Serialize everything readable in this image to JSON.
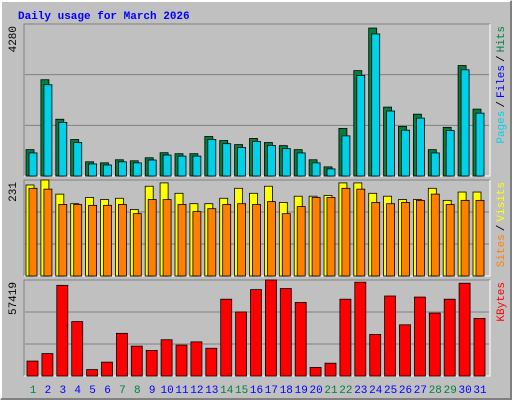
{
  "title": "Daily usage for March 2026",
  "chart_data": [
    {
      "type": "bar",
      "ylim": [
        0,
        4280
      ],
      "yticks": [
        4280
      ],
      "grid": true,
      "legend_separator": "/",
      "series": [
        {
          "name": "Hits",
          "color": "#008040",
          "values": [
            742,
            2711,
            1598,
            1027,
            400,
            371,
            457,
            428,
            514,
            656,
            628,
            628,
            1113,
            999,
            885,
            1056,
            942,
            856,
            742,
            457,
            257,
            1341,
            2967,
            4166,
            1940,
            1398,
            1741,
            742,
            1370,
            3110,
            1883
          ]
        },
        {
          "name": "Files",
          "color": "#0000FF",
          "values": [
            280,
            600,
            450,
            350,
            160,
            150,
            170,
            160,
            190,
            230,
            220,
            220,
            300,
            280,
            260,
            290,
            270,
            260,
            240,
            170,
            110,
            320,
            650,
            900,
            480,
            360,
            420,
            240,
            340,
            700,
            460
          ]
        },
        {
          "name": "Pages",
          "color": "#00D0E8",
          "values": [
            650,
            2570,
            1510,
            940,
            340,
            310,
            400,
            370,
            450,
            590,
            560,
            560,
            1030,
            910,
            800,
            970,
            860,
            770,
            650,
            370,
            200,
            1130,
            2830,
            4000,
            1830,
            1290,
            1630,
            650,
            1280,
            2990,
            1770
          ]
        }
      ]
    },
    {
      "type": "bar",
      "ylim": [
        0,
        231
      ],
      "yticks": [
        231
      ],
      "grid": true,
      "legend_separator": "/",
      "series": [
        {
          "name": "Visits",
          "color": "#FFFF00",
          "values": [
            219,
            231,
            197,
            174,
            189,
            184,
            187,
            160,
            216,
            224,
            199,
            174,
            174,
            187,
            211,
            199,
            216,
            177,
            192,
            192,
            194,
            224,
            224,
            199,
            192,
            184,
            184,
            211,
            182,
            202,
            202
          ]
        },
        {
          "name": "Sites",
          "color": "#FF8000",
          "values": [
            211,
            209,
            172,
            172,
            170,
            170,
            172,
            150,
            184,
            184,
            172,
            155,
            162,
            172,
            174,
            172,
            179,
            150,
            167,
            189,
            189,
            211,
            209,
            177,
            174,
            177,
            182,
            197,
            172,
            182,
            182
          ]
        }
      ]
    },
    {
      "type": "bar",
      "ylim": [
        0,
        57419
      ],
      "yticks": [
        57419
      ],
      "grid": true,
      "categories": [
        "1",
        "2",
        "3",
        "4",
        "5",
        "6",
        "7",
        "8",
        "9",
        "10",
        "11",
        "12",
        "13",
        "14",
        "15",
        "16",
        "17",
        "18",
        "19",
        "20",
        "21",
        "22",
        "23",
        "24",
        "25",
        "26",
        "27",
        "28",
        "29",
        "30",
        "31"
      ],
      "category_colors": [
        "#008040",
        "#0000FF",
        "#0000FF",
        "#0000FF",
        "#0000FF",
        "#0000FF",
        "#008040",
        "#008040",
        "#0000FF",
        "#0000FF",
        "#0000FF",
        "#0000FF",
        "#0000FF",
        "#008040",
        "#008040",
        "#0000FF",
        "#0000FF",
        "#0000FF",
        "#0000FF",
        "#0000FF",
        "#008040",
        "#008040",
        "#0000FF",
        "#0000FF",
        "#0000FF",
        "#0000FF",
        "#0000FF",
        "#008040",
        "#008040",
        "#0000FF",
        "#0000FF"
      ],
      "series": [
        {
          "name": "KBytes",
          "color": "#FF0000",
          "values": [
            8932,
            13398,
            54229,
            32537,
            3828,
            8294,
            25520,
            17864,
            15312,
            21691,
            18502,
            20416,
            16588,
            45935,
            38279,
            51677,
            57419,
            52315,
            44021,
            5104,
            7656,
            45935,
            56100,
            24882,
            47849,
            30624,
            47211,
            37641,
            45935,
            55505,
            34451
          ]
        }
      ]
    }
  ]
}
